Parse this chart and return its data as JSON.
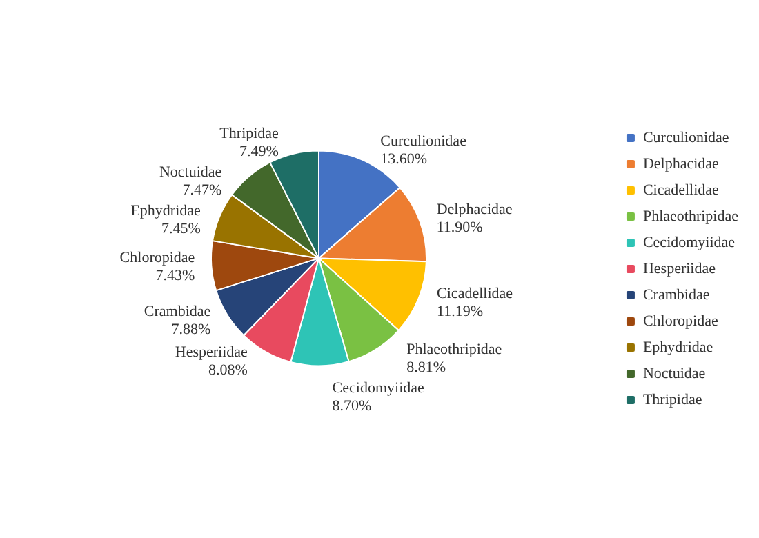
{
  "chart_data": {
    "type": "pie",
    "categories": [
      "Curculionidae",
      "Delphacidae",
      "Cicadellidae",
      "Phlaeothripidae",
      "Cecidomyiidae",
      "Hesperiidae",
      "Crambidae",
      "Chloropidae",
      "Ephydridae",
      "Noctuidae",
      "Thripidae"
    ],
    "values": [
      13.6,
      11.9,
      11.19,
      8.81,
      8.7,
      8.08,
      7.88,
      7.43,
      7.45,
      7.47,
      7.49
    ],
    "value_labels": [
      "13.60%",
      "11.90%",
      "11.19%",
      "8.81%",
      "8.70%",
      "8.08%",
      "7.88%",
      "7.43%",
      "7.45%",
      "7.47%",
      "7.49%"
    ],
    "colors": [
      "#4472c4",
      "#ed7d31",
      "#ffc000",
      "#7ac143",
      "#2ec4b6",
      "#e84a5f",
      "#264478",
      "#9e480e",
      "#997300",
      "#43682b",
      "#1e6e66"
    ],
    "legend": "right"
  }
}
